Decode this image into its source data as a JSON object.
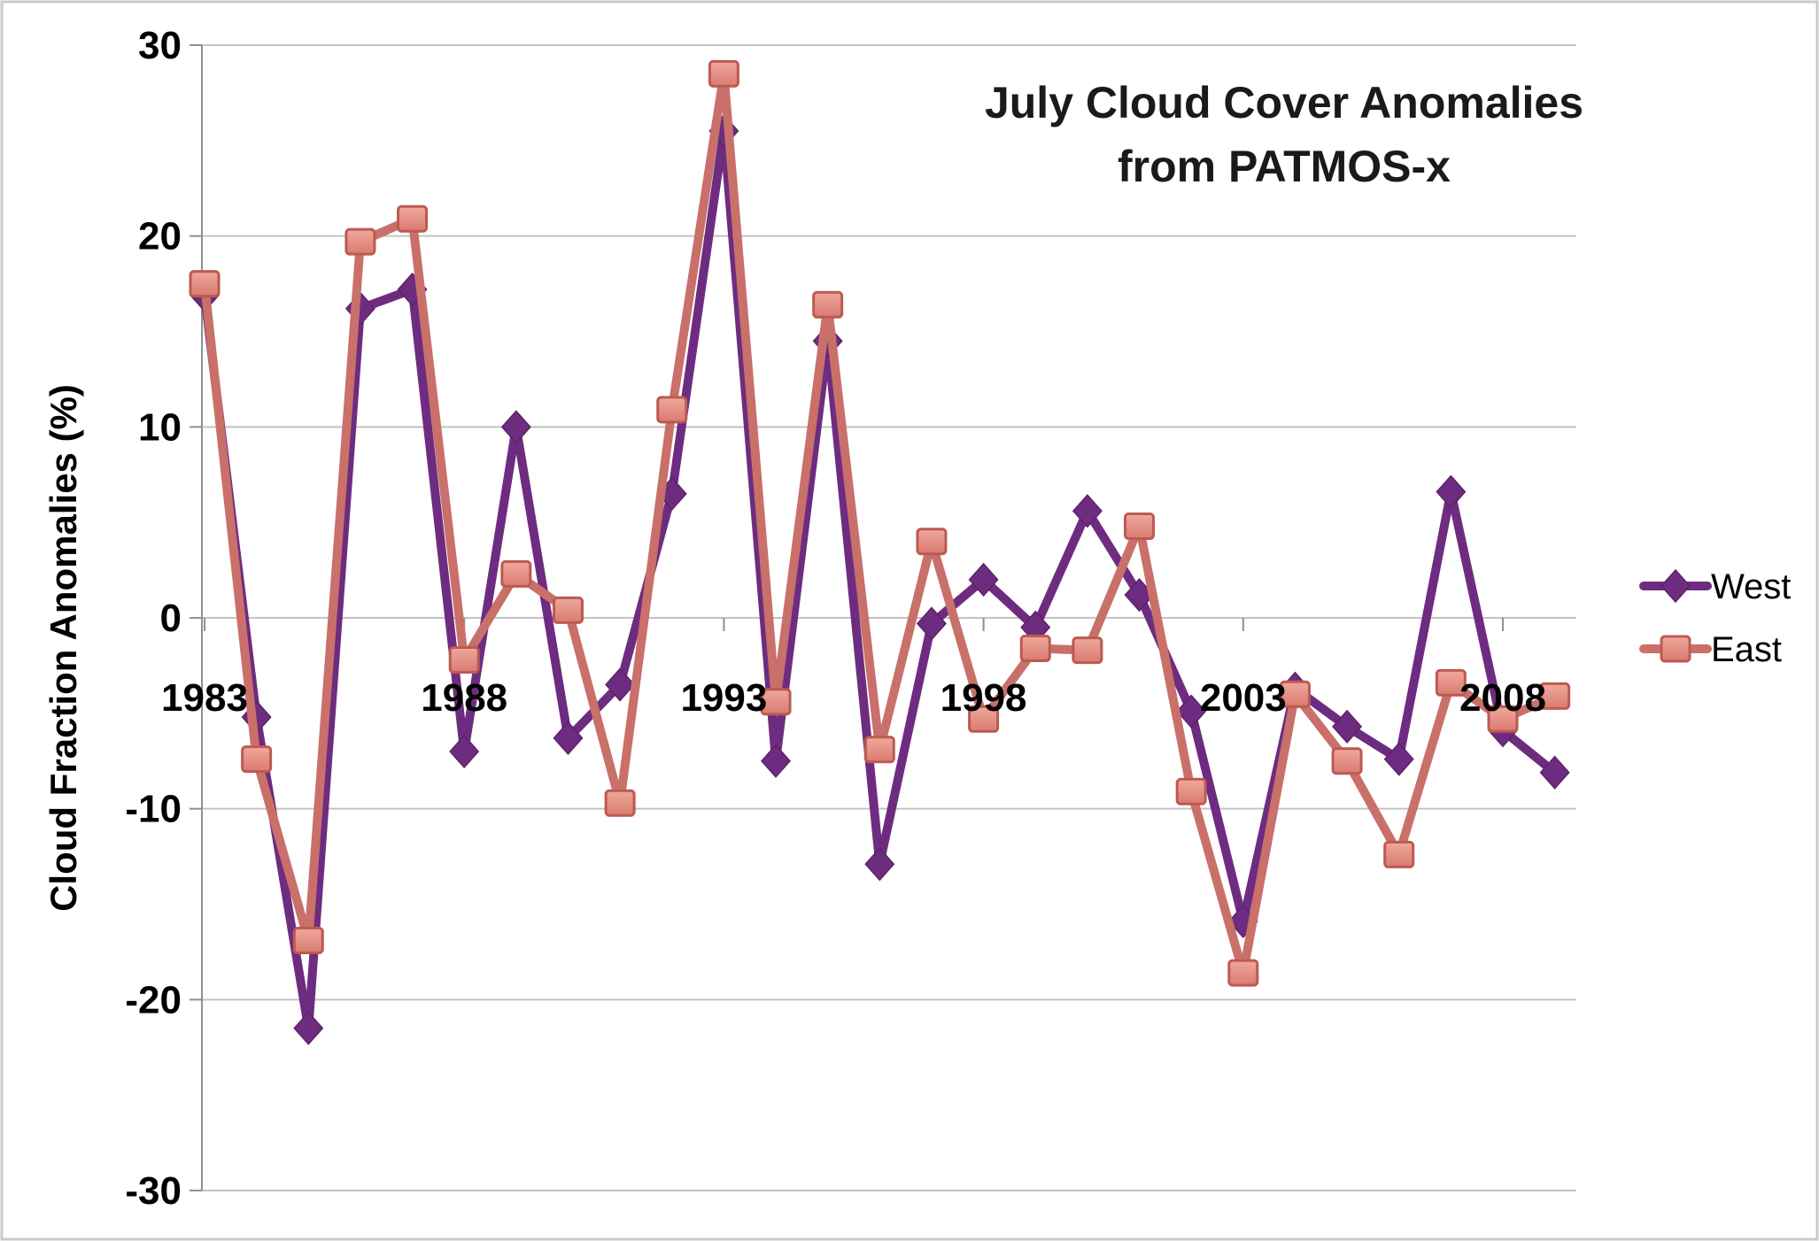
{
  "chart_data": {
    "type": "line",
    "title_lines": [
      "July Cloud Cover Anomalies",
      "from PATMOS-x"
    ],
    "ylabel": "Cloud Fraction Anomalies (%)",
    "xlabel": "",
    "ylim": [
      -30,
      30
    ],
    "yticks": [
      30,
      20,
      10,
      0,
      -10,
      -20,
      -30
    ],
    "xtick_labels": [
      "1983",
      "1988",
      "1993",
      "1998",
      "2003",
      "2008"
    ],
    "grid": "horizontal-only",
    "legend_position": "right-middle",
    "x": [
      1983,
      1984,
      1985,
      1986,
      1987,
      1988,
      1989,
      1990,
      1991,
      1992,
      1993,
      1994,
      1995,
      1996,
      1997,
      1998,
      1999,
      2000,
      2001,
      2002,
      2003,
      2004,
      2005,
      2006,
      2007,
      2008,
      2009
    ],
    "series": [
      {
        "name": "West",
        "marker": "diamond",
        "line_color": "#6E2C80",
        "marker_color": "#6E2C80",
        "marker_stroke": "#5C2368",
        "values": [
          16.9,
          -5.2,
          -21.5,
          16.2,
          17.2,
          -7.0,
          10.0,
          -6.3,
          -3.5,
          6.5,
          25.5,
          -7.5,
          14.5,
          -12.9,
          -0.3,
          2.0,
          -0.5,
          5.6,
          1.2,
          -4.9,
          -15.9,
          -3.7,
          -5.7,
          -7.4,
          6.6,
          -5.9,
          -8.1
        ]
      },
      {
        "name": "East",
        "marker": "square",
        "line_color": "#C9706A",
        "marker_color": "#E48C80",
        "marker_stroke": "#BC5A52",
        "values": [
          17.5,
          -7.4,
          -16.9,
          19.7,
          20.9,
          -2.2,
          2.3,
          0.4,
          -9.7,
          10.9,
          28.5,
          -4.4,
          16.4,
          -6.9,
          4.0,
          -5.3,
          -1.6,
          -1.7,
          4.8,
          -9.1,
          -18.6,
          -4.0,
          -7.5,
          -12.4,
          -3.4,
          -5.3,
          -4.1
        ]
      }
    ]
  },
  "colors": {
    "background": "#FFFFFF",
    "gridline": "#C2C3C4",
    "axis": "#8F9091",
    "text": "#000000",
    "frame_border": "#C9CACB"
  }
}
